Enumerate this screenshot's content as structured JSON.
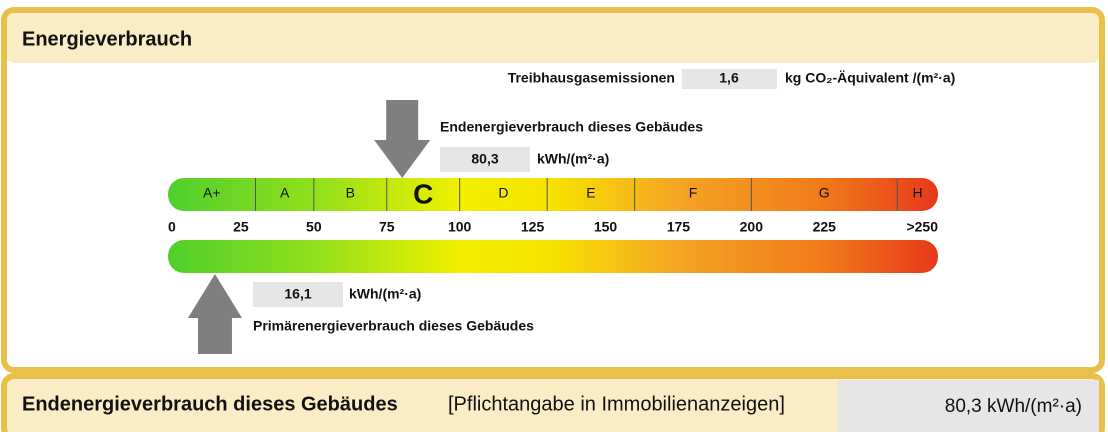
{
  "header": {
    "title": "Energieverbrauch"
  },
  "emissions": {
    "label": "Treibhausgasemissionen",
    "value": "1,6",
    "unit": "kg CO₂-Äquivalent /(m²·a)"
  },
  "scale": {
    "xlim": [
      0,
      264
    ],
    "classes": [
      {
        "label": "A+",
        "from": 0
      },
      {
        "label": "A",
        "from": 30
      },
      {
        "label": "B",
        "from": 50
      },
      {
        "label": "C",
        "from": 75
      },
      {
        "label": "D",
        "from": 100
      },
      {
        "label": "E",
        "from": 130
      },
      {
        "label": "F",
        "from": 160
      },
      {
        "label": "G",
        "from": 200
      },
      {
        "label": "H",
        "from": 250
      }
    ],
    "ticks": [
      0,
      25,
      50,
      75,
      100,
      125,
      150,
      175,
      200,
      225,
      {
        "value": 250,
        "label": ">250"
      }
    ]
  },
  "final_energy": {
    "label": "Endenergieverbrauch dieses Gebäudes",
    "value": {
      "value": 80.3,
      "label": "80,3"
    },
    "unit": "kWh/(m²·a)"
  },
  "primary_energy": {
    "label": "Primärenergieverbrauch dieses Gebäudes",
    "value": {
      "value": 16.1,
      "label": "16,1"
    },
    "unit": "kWh/(m²·a)"
  },
  "footer": {
    "title": "Endenergieverbrauch dieses Gebäudes",
    "note": "[Pflichtangabe in Immobilienanzeigen]",
    "value": "80,3 kWh/(m²·a)"
  }
}
